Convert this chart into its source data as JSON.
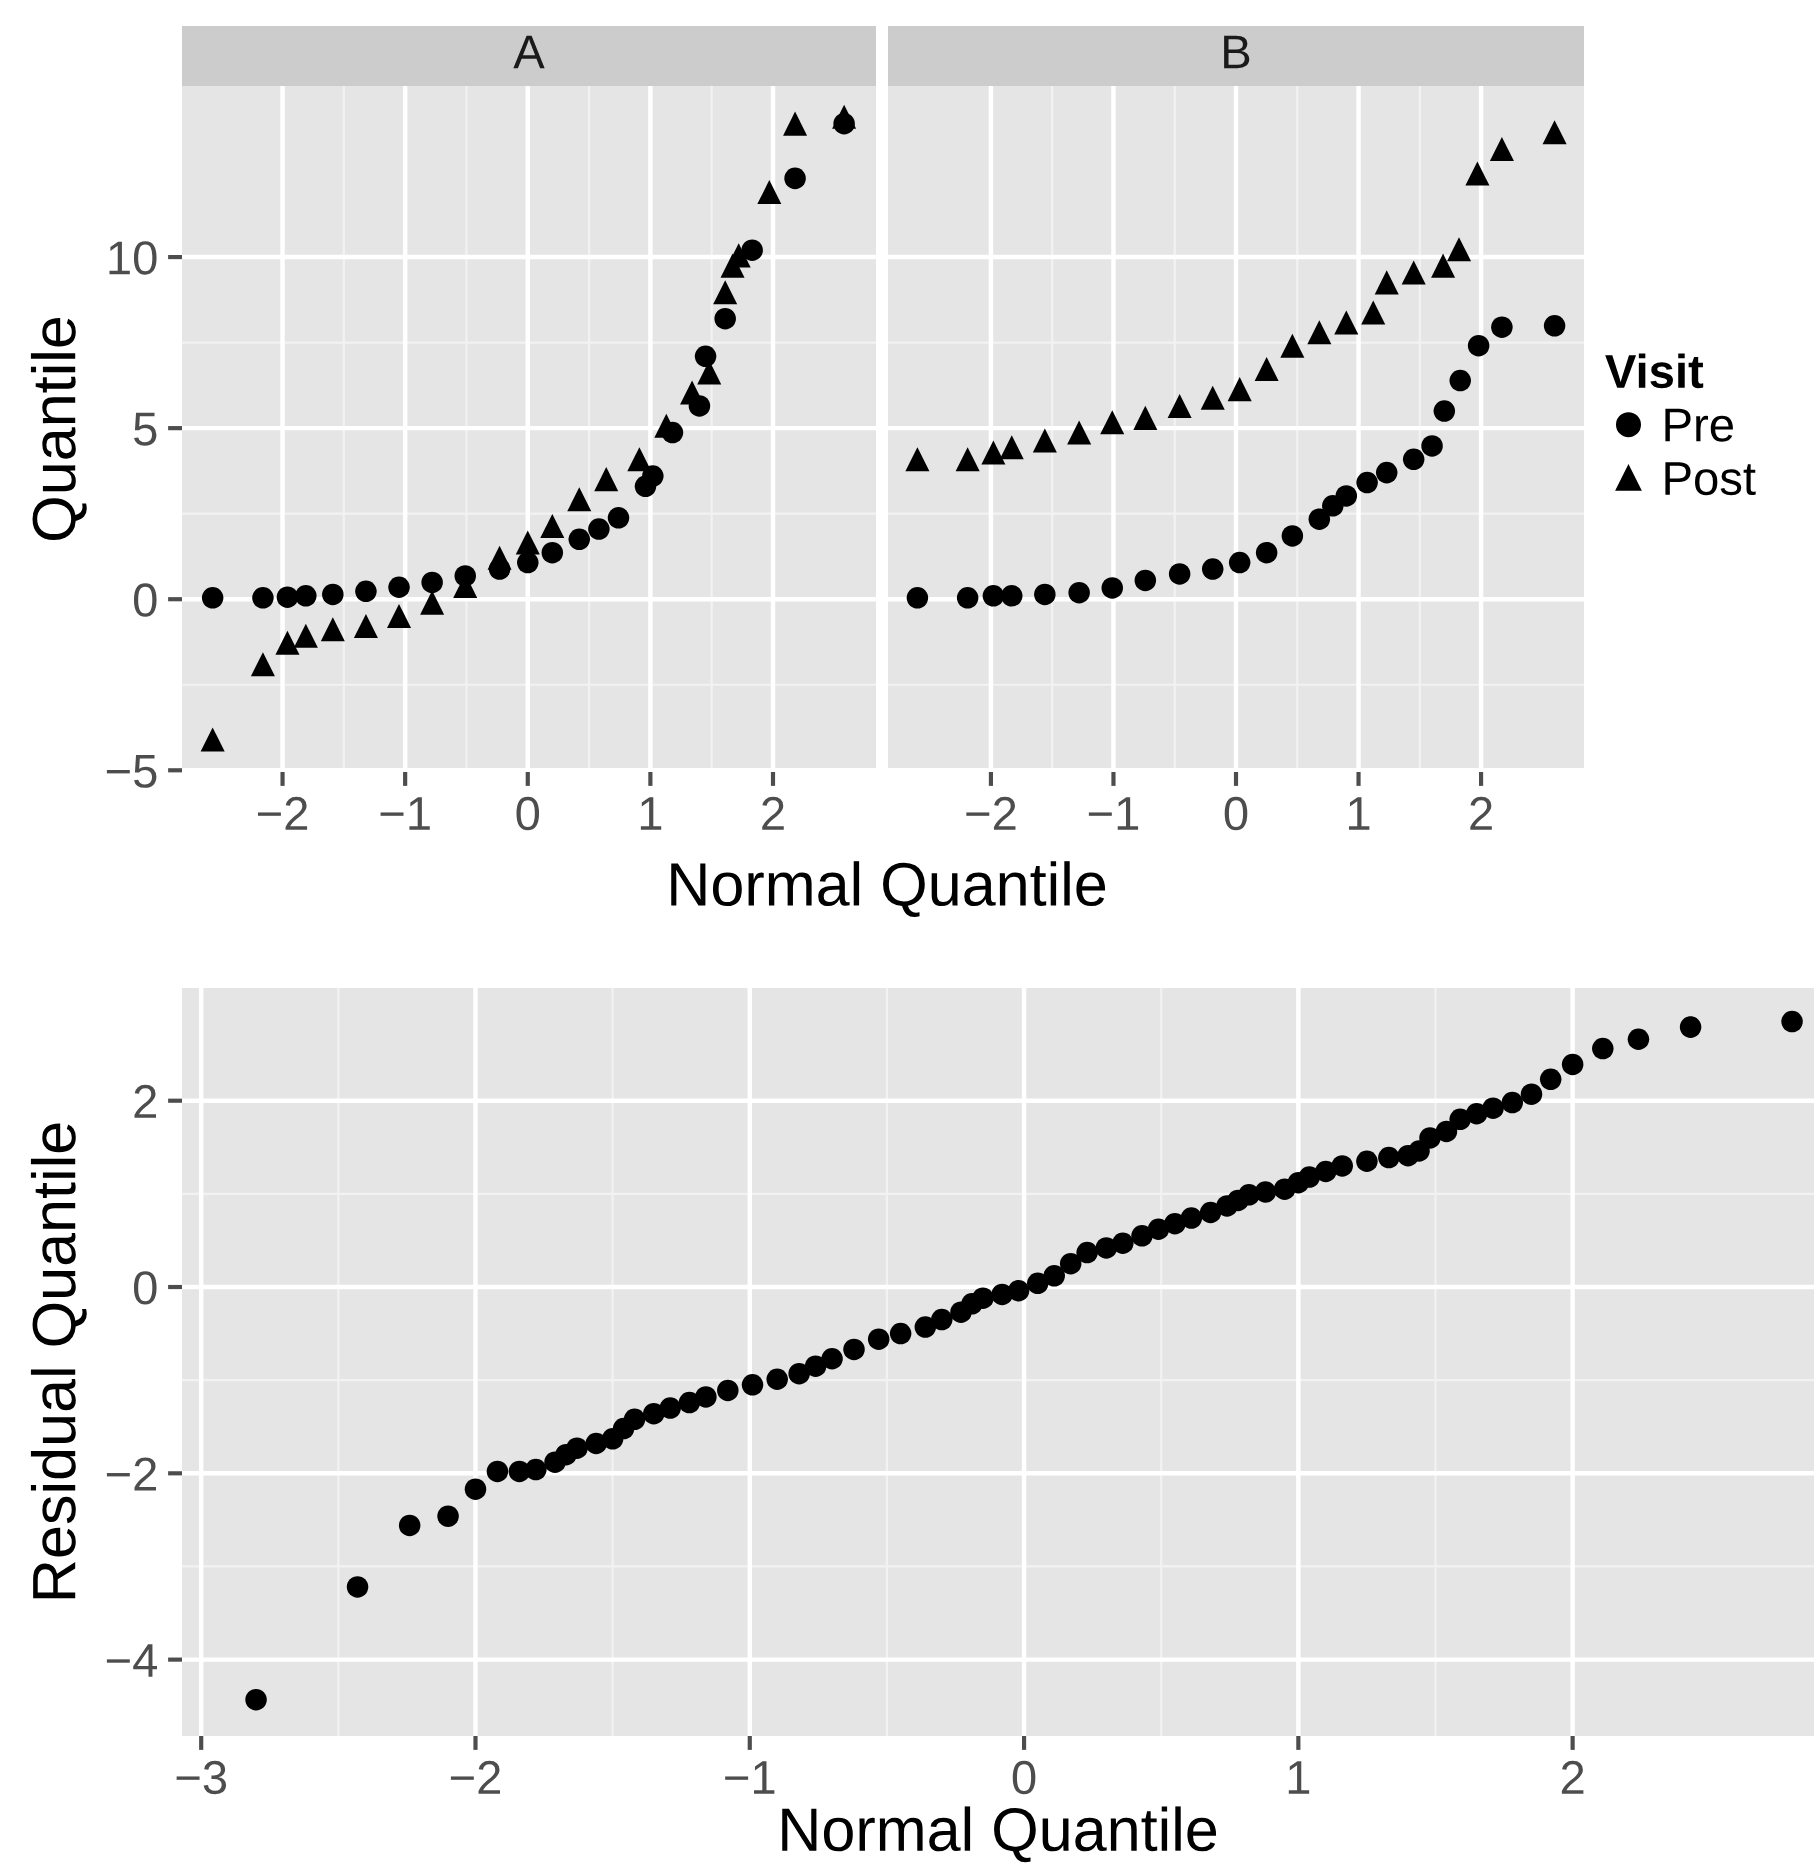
{
  "chart_data": [
    {
      "type": "scatter",
      "title": "A",
      "xlabel": "Normal Quantile",
      "ylabel": "Quantile",
      "xlim": [
        -2.82,
        2.84
      ],
      "ylim": [
        -5.05,
        15.0
      ],
      "xticks": [
        -2,
        -1,
        0,
        1,
        2
      ],
      "yticks": [
        -5,
        0,
        5,
        10
      ],
      "grid": true,
      "series": [
        {
          "color": "#000000",
          "marker": "circle",
          "x": [
            -2.57,
            -2.16,
            -1.96,
            -1.81,
            -1.59,
            -1.32,
            -1.05,
            -0.78,
            -0.51,
            -0.23,
            0,
            0.2,
            0.42,
            0.58,
            0.74,
            0.96,
            1.02,
            1.18,
            1.4,
            1.45,
            1.61,
            1.83,
            2.18,
            2.58
          ],
          "values": [
            0.04,
            0.04,
            0.06,
            0.1,
            0.14,
            0.23,
            0.35,
            0.49,
            0.68,
            0.88,
            1.07,
            1.36,
            1.75,
            2.05,
            2.38,
            3.3,
            3.6,
            4.87,
            5.65,
            7.1,
            8.2,
            10.2,
            12.3,
            13.9
          ]
        },
        {
          "color": "#000000",
          "marker": "triangle",
          "x": [
            -2.57,
            -2.16,
            -1.96,
            -1.81,
            -1.59,
            -1.32,
            -1.05,
            -0.78,
            -0.51,
            -0.23,
            0,
            0.2,
            0.42,
            0.64,
            0.91,
            1.13,
            1.34,
            1.48,
            1.61,
            1.67,
            1.72,
            1.97,
            2.18,
            2.58
          ],
          "values": [
            -4.1,
            -1.9,
            -1.27,
            -1.07,
            -0.88,
            -0.78,
            -0.49,
            -0.1,
            0.39,
            1.21,
            1.66,
            2.14,
            2.92,
            3.51,
            4.09,
            5.07,
            6.04,
            6.63,
            8.97,
            9.75,
            10.05,
            11.9,
            13.9,
            14.1
          ]
        }
      ]
    },
    {
      "type": "scatter",
      "title": "B",
      "xlim": [
        -2.84,
        2.84
      ],
      "ylim": [
        -5.05,
        15.0
      ],
      "xticks": [
        -2,
        -1,
        0,
        1,
        2
      ],
      "yticks": [
        -5,
        0,
        5,
        10
      ],
      "tick_labels": "x",
      "grid": true,
      "legend": "right",
      "legend_title": "Visit",
      "series": [
        {
          "name": "Pre",
          "color": "#000000",
          "marker": "circle",
          "x": [
            -2.6,
            -2.19,
            -1.98,
            -1.83,
            -1.56,
            -1.28,
            -1.01,
            -0.74,
            -0.46,
            -0.19,
            0.03,
            0.25,
            0.46,
            0.68,
            0.79,
            0.9,
            1.07,
            1.23,
            1.45,
            1.6,
            1.7,
            1.83,
            1.98,
            2.17,
            2.6
          ],
          "values": [
            0.04,
            0.04,
            0.1,
            0.1,
            0.14,
            0.19,
            0.33,
            0.55,
            0.74,
            0.88,
            1.07,
            1.36,
            1.85,
            2.34,
            2.73,
            3.02,
            3.41,
            3.7,
            4.09,
            4.48,
            5.5,
            6.39,
            7.41,
            7.95,
            7.99
          ]
        },
        {
          "name": "Post",
          "color": "#000000",
          "marker": "triangle",
          "x": [
            -2.6,
            -2.19,
            -1.98,
            -1.83,
            -1.56,
            -1.28,
            -1.01,
            -0.74,
            -0.46,
            -0.19,
            0.03,
            0.25,
            0.46,
            0.68,
            0.9,
            1.12,
            1.23,
            1.45,
            1.69,
            1.82,
            1.97,
            2.17,
            2.6
          ],
          "values": [
            4.09,
            4.09,
            4.29,
            4.44,
            4.64,
            4.87,
            5.17,
            5.3,
            5.65,
            5.89,
            6.14,
            6.73,
            7.41,
            7.8,
            8.09,
            8.38,
            9.26,
            9.55,
            9.75,
            10.23,
            12.44,
            13.16,
            13.65
          ]
        }
      ]
    },
    {
      "type": "scatter",
      "xlabel": "Normal Quantile",
      "ylabel": "Residual Quantile",
      "xlim": [
        -3.07,
        2.88
      ],
      "ylim": [
        -4.82,
        3.21
      ],
      "xticks": [
        -3,
        -2,
        -1,
        0,
        1,
        2
      ],
      "yticks": [
        -4,
        -2,
        0,
        2
      ],
      "grid": true,
      "marker": "circle",
      "series": [
        {
          "color": "#000000",
          "x": [
            -2.8,
            -2.43,
            -2.24,
            -2.1,
            -2.0,
            -1.92,
            -1.84,
            -1.78,
            -1.71,
            -1.67,
            -1.63,
            -1.56,
            -1.5,
            -1.46,
            -1.42,
            -1.35,
            -1.29,
            -1.22,
            -1.16,
            -1.08,
            -0.99,
            -0.9,
            -0.82,
            -0.76,
            -0.7,
            -0.62,
            -0.53,
            -0.45,
            -0.36,
            -0.3,
            -0.23,
            -0.19,
            -0.15,
            -0.08,
            -0.02,
            0.05,
            0.11,
            0.17,
            0.23,
            0.3,
            0.36,
            0.43,
            0.49,
            0.55,
            0.61,
            0.68,
            0.74,
            0.78,
            0.82,
            0.88,
            0.95,
            1.0,
            1.04,
            1.1,
            1.16,
            1.25,
            1.33,
            1.4,
            1.44,
            1.48,
            1.54,
            1.59,
            1.65,
            1.71,
            1.78,
            1.85,
            1.92,
            2.0,
            2.11,
            2.24,
            2.43,
            2.8
          ],
          "values": [
            -4.43,
            -3.22,
            -2.56,
            -2.46,
            -2.17,
            -1.98,
            -1.98,
            -1.96,
            -1.88,
            -1.8,
            -1.73,
            -1.68,
            -1.63,
            -1.52,
            -1.42,
            -1.36,
            -1.3,
            -1.24,
            -1.18,
            -1.11,
            -1.05,
            -0.99,
            -0.93,
            -0.85,
            -0.77,
            -0.67,
            -0.56,
            -0.5,
            -0.43,
            -0.35,
            -0.27,
            -0.18,
            -0.12,
            -0.08,
            -0.04,
            0.04,
            0.12,
            0.25,
            0.37,
            0.42,
            0.47,
            0.55,
            0.62,
            0.68,
            0.74,
            0.8,
            0.87,
            0.93,
            0.99,
            1.02,
            1.05,
            1.12,
            1.18,
            1.24,
            1.3,
            1.35,
            1.39,
            1.41,
            1.46,
            1.6,
            1.67,
            1.8,
            1.86,
            1.92,
            1.98,
            2.07,
            2.23,
            2.39,
            2.56,
            2.66,
            2.79,
            2.85
          ]
        }
      ]
    }
  ]
}
